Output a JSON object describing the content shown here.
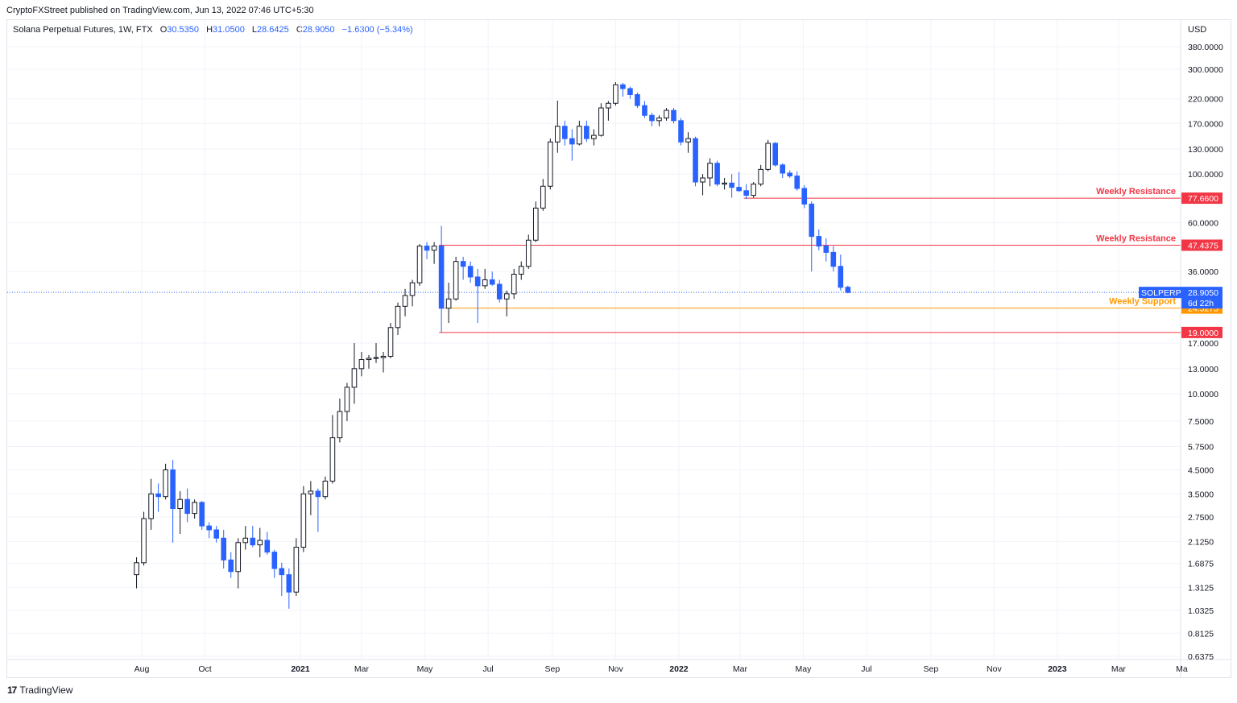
{
  "header": {
    "caption": "CryptoFXStreet published on TradingView.com, Jun 13, 2022 07:46 UTC+5:30",
    "symbol": "Solana Perpetual Futures, 1W, FTX",
    "o_label": "O",
    "o_value": "30.5350",
    "h_label": "H",
    "h_value": "31.0500",
    "l_label": "L",
    "l_value": "28.6425",
    "c_label": "C",
    "c_value": "28.9050",
    "change": "−1.6300 (−5.34%)",
    "currency": "USD"
  },
  "footer": {
    "brand_mark": "17",
    "brand": "TradingView"
  },
  "colors": {
    "up_body": "#ffffff",
    "up_border": "#131722",
    "down": "#2962ff",
    "resistance": "#f23645",
    "support": "#ff9800",
    "grid": "#f0f3fa"
  },
  "chart_data": {
    "type": "candlestick",
    "scale": "log",
    "ylim": [
      0.6375,
      420
    ],
    "y_ticks": [
      "380.0000",
      "300.0000",
      "220.0000",
      "170.0000",
      "130.0000",
      "100.0000",
      "60.0000",
      "36.0000",
      "17.0000",
      "13.0000",
      "10.0000",
      "7.5000",
      "5.7500",
      "4.5000",
      "3.5000",
      "2.7500",
      "2.1250",
      "1.6875",
      "1.3125",
      "1.0325",
      "0.8125",
      "0.6375"
    ],
    "x_labels": [
      {
        "label": "Aug",
        "date": "2020-08-01",
        "bold": false
      },
      {
        "label": "Oct",
        "date": "2020-10-01",
        "bold": false
      },
      {
        "label": "2021",
        "date": "2021-01-01",
        "bold": true
      },
      {
        "label": "Mar",
        "date": "2021-03-01",
        "bold": false
      },
      {
        "label": "May",
        "date": "2021-05-01",
        "bold": false
      },
      {
        "label": "Jul",
        "date": "2021-07-01",
        "bold": false
      },
      {
        "label": "Sep",
        "date": "2021-09-01",
        "bold": false
      },
      {
        "label": "Nov",
        "date": "2021-11-01",
        "bold": false
      },
      {
        "label": "2022",
        "date": "2022-01-01",
        "bold": true
      },
      {
        "label": "Mar",
        "date": "2022-03-01",
        "bold": false
      },
      {
        "label": "May",
        "date": "2022-05-01",
        "bold": false
      },
      {
        "label": "Jul",
        "date": "2022-07-01",
        "bold": false
      },
      {
        "label": "Sep",
        "date": "2022-09-01",
        "bold": false
      },
      {
        "label": "Nov",
        "date": "2022-11-01",
        "bold": false
      },
      {
        "label": "2023",
        "date": "2023-01-01",
        "bold": true
      },
      {
        "label": "Mar",
        "date": "2023-03-01",
        "bold": false
      },
      {
        "label": "Ma",
        "date": "2023-05-01",
        "bold": false
      }
    ],
    "candles": [
      {
        "d": "2020-07-27",
        "o": 1.5,
        "h": 1.8,
        "l": 1.3,
        "c": 1.7
      },
      {
        "d": "2020-08-03",
        "o": 1.7,
        "h": 2.9,
        "l": 1.65,
        "c": 2.7
      },
      {
        "d": "2020-08-10",
        "o": 2.7,
        "h": 4.1,
        "l": 2.4,
        "c": 3.5
      },
      {
        "d": "2020-08-17",
        "o": 3.5,
        "h": 3.9,
        "l": 2.9,
        "c": 3.4
      },
      {
        "d": "2020-08-24",
        "o": 3.4,
        "h": 4.8,
        "l": 3.3,
        "c": 4.5
      },
      {
        "d": "2020-08-31",
        "o": 4.5,
        "h": 5.0,
        "l": 2.1,
        "c": 3.0
      },
      {
        "d": "2020-09-07",
        "o": 3.0,
        "h": 3.6,
        "l": 2.3,
        "c": 3.3
      },
      {
        "d": "2020-09-14",
        "o": 3.3,
        "h": 3.7,
        "l": 2.6,
        "c": 2.85
      },
      {
        "d": "2020-09-21",
        "o": 2.85,
        "h": 3.3,
        "l": 2.7,
        "c": 3.2
      },
      {
        "d": "2020-09-28",
        "o": 3.2,
        "h": 3.25,
        "l": 2.4,
        "c": 2.5
      },
      {
        "d": "2020-10-05",
        "o": 2.5,
        "h": 2.6,
        "l": 2.2,
        "c": 2.4
      },
      {
        "d": "2020-10-12",
        "o": 2.4,
        "h": 2.5,
        "l": 2.1,
        "c": 2.2
      },
      {
        "d": "2020-10-19",
        "o": 2.2,
        "h": 2.4,
        "l": 1.6,
        "c": 1.75
      },
      {
        "d": "2020-10-26",
        "o": 1.75,
        "h": 1.9,
        "l": 1.45,
        "c": 1.55
      },
      {
        "d": "2020-11-02",
        "o": 1.55,
        "h": 2.2,
        "l": 1.3,
        "c": 2.1
      },
      {
        "d": "2020-11-09",
        "o": 2.1,
        "h": 2.5,
        "l": 1.95,
        "c": 2.2
      },
      {
        "d": "2020-11-16",
        "o": 2.2,
        "h": 2.5,
        "l": 2.0,
        "c": 2.05
      },
      {
        "d": "2020-11-23",
        "o": 2.05,
        "h": 2.45,
        "l": 1.8,
        "c": 2.15
      },
      {
        "d": "2020-11-30",
        "o": 2.15,
        "h": 2.35,
        "l": 1.85,
        "c": 1.9
      },
      {
        "d": "2020-12-07",
        "o": 1.9,
        "h": 1.95,
        "l": 1.45,
        "c": 1.6
      },
      {
        "d": "2020-12-14",
        "o": 1.6,
        "h": 1.7,
        "l": 1.2,
        "c": 1.5
      },
      {
        "d": "2020-12-21",
        "o": 1.5,
        "h": 1.6,
        "l": 1.05,
        "c": 1.25
      },
      {
        "d": "2020-12-28",
        "o": 1.25,
        "h": 2.2,
        "l": 1.2,
        "c": 2.0
      },
      {
        "d": "2021-01-04",
        "o": 2.0,
        "h": 3.8,
        "l": 1.9,
        "c": 3.5
      },
      {
        "d": "2021-01-11",
        "o": 3.5,
        "h": 4.0,
        "l": 2.8,
        "c": 3.6
      },
      {
        "d": "2021-01-18",
        "o": 3.6,
        "h": 3.7,
        "l": 2.35,
        "c": 3.4
      },
      {
        "d": "2021-01-25",
        "o": 3.4,
        "h": 4.2,
        "l": 3.3,
        "c": 4.0
      },
      {
        "d": "2021-02-01",
        "o": 4.0,
        "h": 8.0,
        "l": 3.9,
        "c": 6.3
      },
      {
        "d": "2021-02-08",
        "o": 6.3,
        "h": 9.5,
        "l": 6.0,
        "c": 8.3
      },
      {
        "d": "2021-02-15",
        "o": 8.3,
        "h": 11.2,
        "l": 7.5,
        "c": 10.7
      },
      {
        "d": "2021-02-22",
        "o": 10.7,
        "h": 17.0,
        "l": 9.0,
        "c": 13.0
      },
      {
        "d": "2021-03-01",
        "o": 13.0,
        "h": 15.5,
        "l": 12.0,
        "c": 14.3
      },
      {
        "d": "2021-03-08",
        "o": 14.3,
        "h": 15.0,
        "l": 13.0,
        "c": 14.5
      },
      {
        "d": "2021-03-15",
        "o": 14.5,
        "h": 17.0,
        "l": 13.8,
        "c": 14.6
      },
      {
        "d": "2021-03-22",
        "o": 14.6,
        "h": 15.5,
        "l": 12.5,
        "c": 14.8
      },
      {
        "d": "2021-03-29",
        "o": 14.8,
        "h": 21.0,
        "l": 14.5,
        "c": 20.0
      },
      {
        "d": "2021-04-05",
        "o": 20.0,
        "h": 26.0,
        "l": 18.5,
        "c": 25.0
      },
      {
        "d": "2021-04-12",
        "o": 25.0,
        "h": 30.0,
        "l": 22.5,
        "c": 28.0
      },
      {
        "d": "2021-04-19",
        "o": 28.0,
        "h": 33.0,
        "l": 25.0,
        "c": 32.0
      },
      {
        "d": "2021-04-26",
        "o": 32.0,
        "h": 48.0,
        "l": 31.0,
        "c": 47.0
      },
      {
        "d": "2021-05-03",
        "o": 47.0,
        "h": 49.0,
        "l": 41.0,
        "c": 45.0
      },
      {
        "d": "2021-05-10",
        "o": 45.0,
        "h": 49.0,
        "l": 39.0,
        "c": 47.0
      },
      {
        "d": "2021-05-17",
        "o": 47.0,
        "h": 58.0,
        "l": 19.0,
        "c": 24.5
      },
      {
        "d": "2021-05-24",
        "o": 24.5,
        "h": 32.0,
        "l": 21.0,
        "c": 27.0
      },
      {
        "d": "2021-05-31",
        "o": 27.0,
        "h": 42.0,
        "l": 26.5,
        "c": 40.0
      },
      {
        "d": "2021-06-07",
        "o": 40.0,
        "h": 42.0,
        "l": 33.0,
        "c": 38.0
      },
      {
        "d": "2021-06-14",
        "o": 38.0,
        "h": 40.0,
        "l": 32.0,
        "c": 34.0
      },
      {
        "d": "2021-06-21",
        "o": 34.0,
        "h": 37.0,
        "l": 21.0,
        "c": 31.0
      },
      {
        "d": "2021-06-28",
        "o": 31.0,
        "h": 37.0,
        "l": 30.0,
        "c": 33.0
      },
      {
        "d": "2021-07-05",
        "o": 33.0,
        "h": 36.0,
        "l": 31.0,
        "c": 31.5
      },
      {
        "d": "2021-07-12",
        "o": 31.5,
        "h": 33.0,
        "l": 26.0,
        "c": 27.0
      },
      {
        "d": "2021-07-19",
        "o": 27.0,
        "h": 29.5,
        "l": 22.5,
        "c": 28.5
      },
      {
        "d": "2021-07-26",
        "o": 28.5,
        "h": 37.0,
        "l": 27.0,
        "c": 35.0
      },
      {
        "d": "2021-08-02",
        "o": 35.0,
        "h": 40.0,
        "l": 33.0,
        "c": 38.0
      },
      {
        "d": "2021-08-09",
        "o": 38.0,
        "h": 53.0,
        "l": 37.0,
        "c": 50.0
      },
      {
        "d": "2021-08-16",
        "o": 50.0,
        "h": 75.0,
        "l": 49.0,
        "c": 70.0
      },
      {
        "d": "2021-08-23",
        "o": 70.0,
        "h": 95.0,
        "l": 68.0,
        "c": 88.0
      },
      {
        "d": "2021-08-30",
        "o": 88.0,
        "h": 145.0,
        "l": 85.0,
        "c": 140.0
      },
      {
        "d": "2021-09-06",
        "o": 140.0,
        "h": 216.0,
        "l": 125.0,
        "c": 165.0
      },
      {
        "d": "2021-09-13",
        "o": 165.0,
        "h": 175.0,
        "l": 135.0,
        "c": 145.0
      },
      {
        "d": "2021-09-20",
        "o": 145.0,
        "h": 160.0,
        "l": 115.0,
        "c": 137.0
      },
      {
        "d": "2021-09-27",
        "o": 137.0,
        "h": 175.0,
        "l": 135.0,
        "c": 165.0
      },
      {
        "d": "2021-10-04",
        "o": 165.0,
        "h": 175.0,
        "l": 140.0,
        "c": 145.0
      },
      {
        "d": "2021-10-11",
        "o": 145.0,
        "h": 160.0,
        "l": 135.0,
        "c": 150.0
      },
      {
        "d": "2021-10-18",
        "o": 150.0,
        "h": 210.0,
        "l": 148.0,
        "c": 200.0
      },
      {
        "d": "2021-10-25",
        "o": 200.0,
        "h": 215.0,
        "l": 175.0,
        "c": 210.0
      },
      {
        "d": "2021-11-01",
        "o": 210.0,
        "h": 262.0,
        "l": 205.0,
        "c": 255.0
      },
      {
        "d": "2021-11-08",
        "o": 255.0,
        "h": 260.0,
        "l": 225.0,
        "c": 245.0
      },
      {
        "d": "2021-11-15",
        "o": 245.0,
        "h": 250.0,
        "l": 220.0,
        "c": 230.0
      },
      {
        "d": "2021-11-22",
        "o": 230.0,
        "h": 235.0,
        "l": 200.0,
        "c": 205.0
      },
      {
        "d": "2021-11-29",
        "o": 205.0,
        "h": 215.0,
        "l": 180.0,
        "c": 185.0
      },
      {
        "d": "2021-12-06",
        "o": 185.0,
        "h": 190.0,
        "l": 165.0,
        "c": 175.0
      },
      {
        "d": "2021-12-13",
        "o": 175.0,
        "h": 185.0,
        "l": 165.0,
        "c": 180.0
      },
      {
        "d": "2021-12-20",
        "o": 180.0,
        "h": 200.0,
        "l": 175.0,
        "c": 195.0
      },
      {
        "d": "2021-12-27",
        "o": 195.0,
        "h": 200.0,
        "l": 170.0,
        "c": 175.0
      },
      {
        "d": "2022-01-03",
        "o": 175.0,
        "h": 180.0,
        "l": 135.0,
        "c": 140.0
      },
      {
        "d": "2022-01-10",
        "o": 140.0,
        "h": 155.0,
        "l": 125.0,
        "c": 145.0
      },
      {
        "d": "2022-01-17",
        "o": 145.0,
        "h": 148.0,
        "l": 88.0,
        "c": 92.0
      },
      {
        "d": "2022-01-24",
        "o": 92.0,
        "h": 100.0,
        "l": 80.0,
        "c": 96.0
      },
      {
        "d": "2022-01-31",
        "o": 96.0,
        "h": 118.0,
        "l": 88.0,
        "c": 112.0
      },
      {
        "d": "2022-02-07",
        "o": 112.0,
        "h": 115.0,
        "l": 88.0,
        "c": 90.0
      },
      {
        "d": "2022-02-14",
        "o": 90.0,
        "h": 96.0,
        "l": 85.0,
        "c": 91.0
      },
      {
        "d": "2022-02-21",
        "o": 91.0,
        "h": 100.0,
        "l": 78.0,
        "c": 87.0
      },
      {
        "d": "2022-02-28",
        "o": 87.0,
        "h": 102.0,
        "l": 83.0,
        "c": 84.0
      },
      {
        "d": "2022-03-07",
        "o": 84.0,
        "h": 90.0,
        "l": 77.0,
        "c": 80.0
      },
      {
        "d": "2022-03-14",
        "o": 80.0,
        "h": 92.0,
        "l": 78.0,
        "c": 90.0
      },
      {
        "d": "2022-03-21",
        "o": 90.0,
        "h": 110.0,
        "l": 88.0,
        "c": 105.0
      },
      {
        "d": "2022-03-28",
        "o": 105.0,
        "h": 143.0,
        "l": 103.0,
        "c": 138.0
      },
      {
        "d": "2022-04-04",
        "o": 138.0,
        "h": 140.0,
        "l": 108.0,
        "c": 110.0
      },
      {
        "d": "2022-04-11",
        "o": 110.0,
        "h": 112.0,
        "l": 96.0,
        "c": 101.0
      },
      {
        "d": "2022-04-18",
        "o": 101.0,
        "h": 104.0,
        "l": 96.0,
        "c": 98.0
      },
      {
        "d": "2022-04-25",
        "o": 98.0,
        "h": 103.0,
        "l": 84.0,
        "c": 86.0
      },
      {
        "d": "2022-05-02",
        "o": 86.0,
        "h": 89.0,
        "l": 70.0,
        "c": 73.0
      },
      {
        "d": "2022-05-09",
        "o": 73.0,
        "h": 75.0,
        "l": 36.0,
        "c": 52.0
      },
      {
        "d": "2022-05-16",
        "o": 52.0,
        "h": 56.0,
        "l": 45.0,
        "c": 47.0
      },
      {
        "d": "2022-05-23",
        "o": 47.0,
        "h": 51.0,
        "l": 40.0,
        "c": 44.0
      },
      {
        "d": "2022-05-30",
        "o": 44.0,
        "h": 47.0,
        "l": 36.0,
        "c": 38.0
      },
      {
        "d": "2022-06-06",
        "o": 38.0,
        "h": 43.0,
        "l": 29.5,
        "c": 30.5
      },
      {
        "d": "2022-06-13",
        "o": 30.535,
        "h": 31.05,
        "l": 28.6425,
        "c": 28.905
      }
    ],
    "levels": [
      {
        "name": "Weekly Resistance",
        "value": 77.66,
        "label": "77.6600",
        "color": "#f23645",
        "from": "2022-03-07"
      },
      {
        "name": "Weekly Resistance",
        "value": 47.4375,
        "label": "47.4375",
        "color": "#f23645",
        "from": "2021-05-17"
      },
      {
        "name": "Weekly Support",
        "value": 24.5275,
        "label": "24.5275",
        "color": "#ff9800",
        "from": "2021-05-17"
      },
      {
        "name": "",
        "value": 19.0,
        "label": "19.0000",
        "color": "#f23645",
        "from": "2021-05-17"
      }
    ],
    "last_price": {
      "symbol": "SOLPERP",
      "value": 28.905,
      "label": "28.9050",
      "countdown": "6d 22h",
      "color": "#2962ff"
    }
  }
}
